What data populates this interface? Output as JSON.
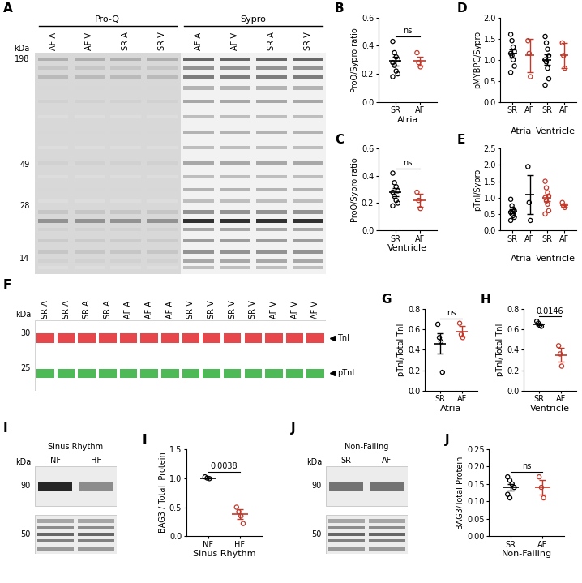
{
  "blots": [
    {
      "panel": "A",
      "type": "gel",
      "unit": "kDa",
      "markers": [
        198,
        49,
        28,
        14
      ],
      "groups": [
        {
          "label": "Pro-Q",
          "lanes": [
            "AF A",
            "AF V",
            "SR A",
            "SR V"
          ]
        },
        {
          "label": "Sypro",
          "lanes": [
            "AF A",
            "AF V",
            "SR A",
            "SR V"
          ]
        }
      ]
    },
    {
      "panel": "F",
      "type": "western",
      "unit": "kDa",
      "lanes": [
        "SR A",
        "SR A",
        "SR A",
        "SR A",
        "AF A",
        "AF A",
        "AF A",
        "SR V",
        "SR V",
        "SR V",
        "SR V",
        "AF V",
        "AF V",
        "AF V"
      ],
      "rows": [
        {
          "marker": 30,
          "band": "TnI",
          "color": "#e3262a"
        },
        {
          "marker": 25,
          "band": "pTnI",
          "color": "#2fae3a"
        }
      ]
    },
    {
      "panel": "I",
      "type": "western",
      "title": "Sinus Rhythm",
      "unit": "kDa",
      "lanes": [
        "NF",
        "HF"
      ],
      "markers": [
        90,
        50
      ]
    },
    {
      "panel": "J",
      "type": "western",
      "title": "Non-Failing",
      "unit": "kDa",
      "lanes": [
        "SR",
        "AF"
      ],
      "markers": [
        90,
        50
      ]
    }
  ],
  "chart_data": [
    {
      "panel": "B",
      "type": "dot",
      "categories": [
        "SR",
        "AF"
      ],
      "colors": [
        "black",
        "#c0392b"
      ],
      "values": [
        [
          0.43,
          0.35,
          0.32,
          0.3,
          0.28,
          0.26,
          0.22,
          0.2,
          0.18
        ],
        [
          0.35,
          0.28,
          0.25
        ]
      ],
      "mean": [
        0.29,
        0.29
      ],
      "error": [
        0.03,
        0.03
      ],
      "ylim": [
        0,
        0.6
      ],
      "yticks": [
        {
          "value": 0,
          "label": "0.0"
        },
        0.2,
        0.4,
        0.6
      ],
      "ylabel": "ProQ/Sypro ratio",
      "xlabel": "Atria",
      "comparison": "ns"
    },
    {
      "panel": "C",
      "type": "dot",
      "categories": [
        "SR",
        "AF"
      ],
      "colors": [
        "black",
        "#c0392b"
      ],
      "values": [
        [
          0.42,
          0.35,
          0.32,
          0.29,
          0.28,
          0.25,
          0.22,
          0.2,
          0.18
        ],
        [
          0.28,
          0.22,
          0.16
        ]
      ],
      "mean": [
        0.28,
        0.22
      ],
      "error": [
        0.03,
        0.05
      ],
      "ylim": [
        0,
        0.6
      ],
      "yticks": [
        {
          "value": 0,
          "label": "0.0"
        },
        0.2,
        0.4,
        0.6
      ],
      "ylabel": "ProQ/Sypro ratio",
      "xlabel": "Ventricle",
      "comparison": "ns"
    },
    {
      "panel": "D",
      "type": "dot",
      "categories": [
        "SR",
        "AF",
        "SR",
        "AF"
      ],
      "groups": [
        "Atria",
        "Atria",
        "Ventricle",
        "Ventricle"
      ],
      "colors": [
        "black",
        "#c0392b",
        "black",
        "#c0392b"
      ],
      "values": [
        [
          1.6,
          1.45,
          1.3,
          1.2,
          1.15,
          1.1,
          1.0,
          0.85,
          0.7
        ],
        [
          1.45,
          1.15,
          0.6
        ],
        [
          1.55,
          1.4,
          1.25,
          1.1,
          1.0,
          0.95,
          0.8,
          0.55,
          0.4
        ],
        [
          1.4,
          1.1,
          0.8
        ]
      ],
      "mean": [
        1.15,
        1.1,
        1.0,
        1.1
      ],
      "error": [
        0.1,
        0.4,
        0.12,
        0.3
      ],
      "ylim": [
        0,
        2.0
      ],
      "yticks": [
        {
          "value": 0,
          "label": "0.0"
        },
        0.5,
        {
          "value": 1,
          "label": "1.0"
        },
        1.5,
        {
          "value": 2,
          "label": "2.0"
        }
      ],
      "ylabel": "pMYBPC/Sypro"
    },
    {
      "panel": "E",
      "type": "dot",
      "categories": [
        "SR",
        "AF",
        "SR",
        "AF"
      ],
      "groups": [
        "Atria",
        "Atria",
        "Ventricle",
        "Ventricle"
      ],
      "colors": [
        "black",
        "black",
        "#c0392b",
        "#c0392b"
      ],
      "values": [
        [
          0.95,
          0.75,
          0.65,
          0.6,
          0.55,
          0.5,
          0.45,
          0.4,
          0.3
        ],
        [
          1.95,
          0.85,
          0.3
        ],
        [
          1.5,
          1.3,
          1.15,
          1.05,
          1.0,
          0.9,
          0.8,
          0.6,
          0.5
        ],
        [
          0.85,
          0.75,
          0.7
        ]
      ],
      "mean": [
        0.58,
        1.1,
        1.0,
        0.78
      ],
      "error": [
        0.07,
        0.6,
        0.1,
        0.05
      ],
      "ylim": [
        0,
        2.5
      ],
      "yticks": [
        {
          "value": 0,
          "label": "0.0"
        },
        0.5,
        {
          "value": 1,
          "label": "1.0"
        },
        1.5,
        {
          "value": 2,
          "label": "2.0"
        },
        2.5
      ],
      "ylabel": "pTnI/Sypro"
    },
    {
      "panel": "G",
      "type": "dot",
      "categories": [
        "SR",
        "AF"
      ],
      "colors": [
        "black",
        "#c0392b"
      ],
      "values": [
        [
          0.65,
          0.52,
          0.48,
          0.18
        ],
        [
          0.66,
          0.55,
          0.52
        ]
      ],
      "mean": [
        0.46,
        0.58
      ],
      "error": [
        0.1,
        0.05
      ],
      "ylim": [
        0,
        0.8
      ],
      "yticks": [
        {
          "value": 0,
          "label": "0.0"
        },
        0.2,
        0.4,
        0.6,
        0.8
      ],
      "ylabel": "pTnI/Total TnI",
      "xlabel": "Atria",
      "comparison": "ns"
    },
    {
      "panel": "H",
      "type": "dot",
      "categories": [
        "SR",
        "AF"
      ],
      "colors": [
        "black",
        "#c0392b"
      ],
      "values": [
        [
          0.68,
          0.66,
          0.64,
          0.63
        ],
        [
          0.44,
          0.36,
          0.24
        ]
      ],
      "mean": [
        0.65,
        0.35
      ],
      "error": [
        0.01,
        0.07
      ],
      "ylim": [
        0,
        0.8
      ],
      "yticks": [
        {
          "value": 0,
          "label": "0.0"
        },
        0.2,
        0.4,
        0.6,
        0.8
      ],
      "ylabel": "pTnI/Total TnI",
      "xlabel": "Ventricle",
      "comparison": "0.0146"
    },
    {
      "panel": "I",
      "type": "dot",
      "categories": [
        "NF",
        "HF"
      ],
      "colors": [
        "black",
        "#c0392b"
      ],
      "values": [
        [
          1.02,
          1.0,
          0.99
        ],
        [
          0.5,
          0.42,
          0.35,
          0.22
        ]
      ],
      "mean": [
        1.0,
        0.38
      ],
      "error": [
        0.01,
        0.08
      ],
      "ylim": [
        0,
        1.5
      ],
      "yticks": [
        {
          "value": 0,
          "label": "0.0"
        },
        0.5,
        {
          "value": 1,
          "label": "1.0"
        },
        1.5
      ],
      "ylabel": "BAG3 / Total  Protein",
      "xlabel": "Sinus Rhythm",
      "comparison": "0.0038"
    },
    {
      "panel": "J",
      "type": "dot",
      "categories": [
        "SR",
        "AF"
      ],
      "colors": [
        "black",
        "#c0392b"
      ],
      "values": [
        [
          0.17,
          0.16,
          0.15,
          0.14,
          0.12,
          0.11
        ],
        [
          0.17,
          0.14,
          0.11
        ]
      ],
      "mean": [
        0.14,
        0.14
      ],
      "error": [
        0.01,
        0.02
      ],
      "ylim": [
        0,
        0.25
      ],
      "yticks": [
        {
          "value": 0,
          "label": "0.00"
        },
        0.05,
        {
          "value": 0.1,
          "label": "0.10"
        },
        0.15,
        {
          "value": 0.2,
          "label": "0.20"
        },
        0.25
      ],
      "ylabel": "BAG3/Total Protein",
      "xlabel": "Non-Failing",
      "comparison": "ns"
    }
  ]
}
